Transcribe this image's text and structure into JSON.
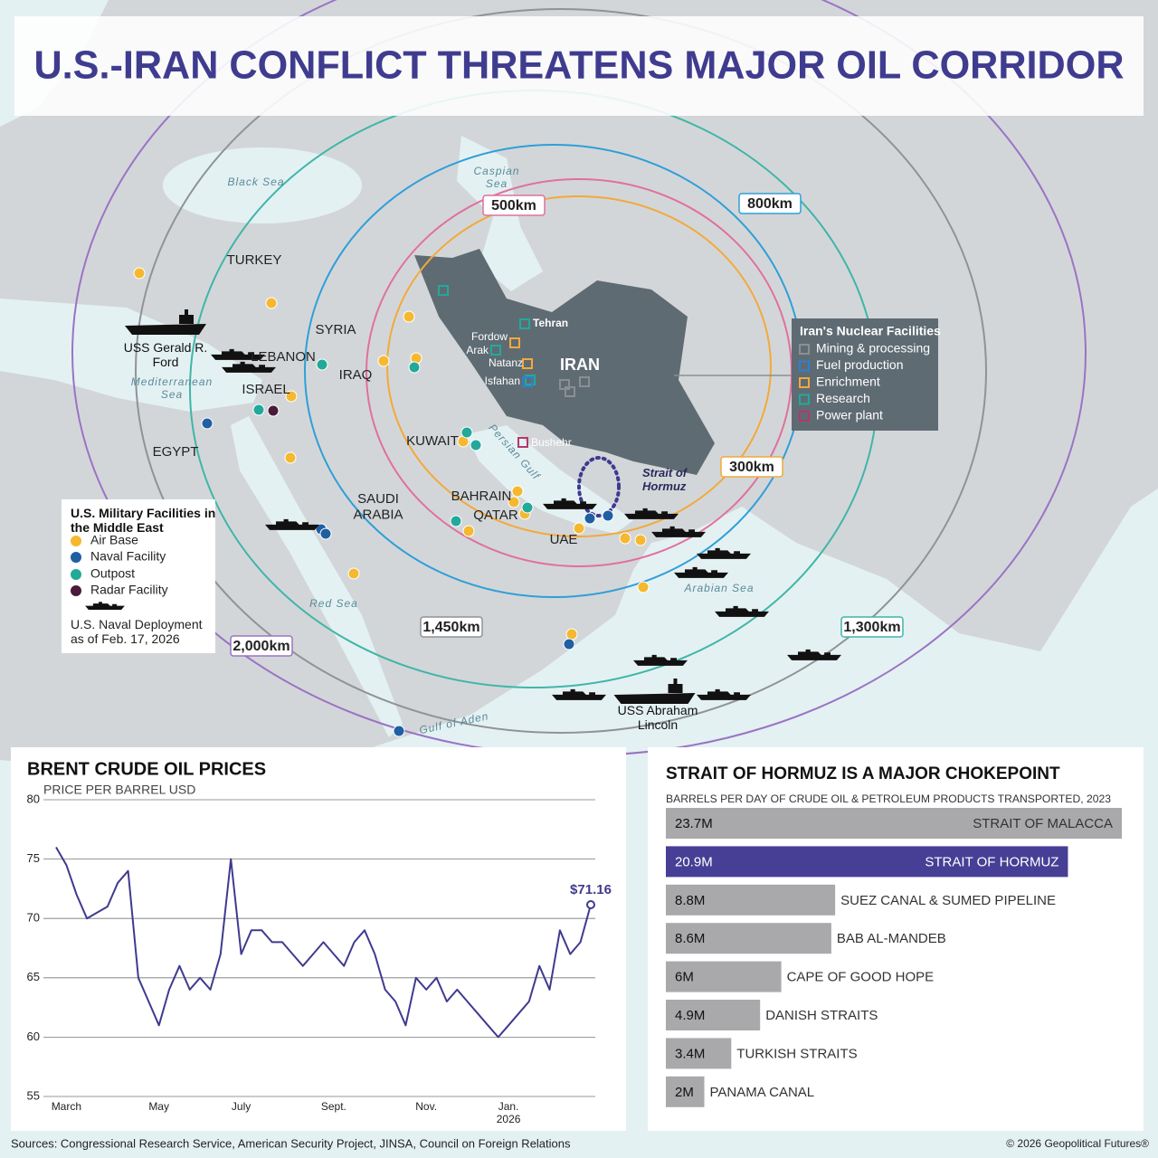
{
  "map": {
    "title": "U.S.-IRAN CONFLICT THREATENS MAJOR OIL CORRIDOR",
    "places": [
      "TURKEY",
      "SYRIA",
      "LEBANON",
      "IRAQ",
      "ISRAEL",
      "EGYPT",
      "SAUDI ARABIA",
      "KUWAIT",
      "BAHRAIN",
      "QATAR",
      "UAE",
      "IRAN"
    ],
    "seas": [
      "Black Sea",
      "Caspian Sea",
      "Mediterranean Sea",
      "Persian Gulf",
      "Red Sea",
      "Arabian Sea",
      "Gulf of Aden"
    ],
    "strait": "Strait of Hormuz",
    "nuclear_sites": [
      "Tehran",
      "Fordow",
      "Arak",
      "Natanz",
      "Isfahan",
      "Bushehr"
    ],
    "rings": [
      "300km",
      "500km",
      "800km",
      "1,300km",
      "1,450km",
      "2,000km"
    ],
    "ships": [
      "USS Gerald R. Ford",
      "USS Abraham Lincoln"
    ],
    "military_legend": {
      "title": "U.S. Military Facilities in the Middle East",
      "items": [
        "Air Base",
        "Naval Facility",
        "Outpost",
        "Radar Facility"
      ],
      "naval_note": "U.S. Naval Deployment as of Feb. 17, 2026"
    },
    "nuclear_legend": {
      "title": "Iran's Nuclear Facilities",
      "items": [
        "Mining & processing",
        "Fuel production",
        "Enrichment",
        "Research",
        "Power plant"
      ]
    }
  },
  "chart_data": [
    {
      "type": "line",
      "title": "BRENT CRUDE OIL PRICES",
      "y_label": "PRICE PER BARREL USD",
      "categories": [
        null,
        "March",
        null,
        null,
        null,
        null,
        null,
        null,
        null,
        null,
        "May",
        null,
        null,
        null,
        null,
        null,
        null,
        null,
        "July",
        null,
        null,
        null,
        null,
        null,
        null,
        null,
        null,
        "Sept.",
        null,
        null,
        null,
        null,
        null,
        null,
        null,
        null,
        "Nov.",
        null,
        null,
        null,
        null,
        null,
        null,
        null,
        "Jan. 2026",
        null,
        null,
        null,
        null,
        null,
        null,
        null,
        null
      ],
      "values": [
        76,
        74.5,
        72,
        70,
        70.5,
        71,
        73,
        74,
        65,
        63,
        61,
        64,
        66,
        64,
        65,
        64,
        67,
        75,
        67,
        69,
        69,
        68,
        68,
        67,
        66,
        67,
        68,
        67,
        66,
        68,
        69,
        67,
        64,
        63,
        61,
        65,
        64,
        65,
        63,
        64,
        63,
        62,
        61,
        60,
        61,
        62,
        63,
        66,
        64,
        69,
        67,
        68,
        71.16
      ],
      "value_labels": [
        null,
        null,
        null,
        null,
        null,
        null,
        null,
        null,
        null,
        null,
        null,
        null,
        null,
        null,
        null,
        null,
        null,
        null,
        null,
        null,
        null,
        null,
        null,
        null,
        null,
        null,
        null,
        null,
        null,
        null,
        null,
        null,
        null,
        null,
        null,
        null,
        null,
        null,
        null,
        null,
        null,
        null,
        null,
        null,
        null,
        null,
        null,
        null,
        null,
        null,
        null,
        null,
        "$71.16"
      ],
      "color": "#3f3a8f",
      "ylim": [
        55,
        80
      ],
      "yticks": [
        55,
        60,
        65,
        70,
        75,
        80
      ],
      "grid": true
    },
    {
      "type": "bar",
      "orientation": "horizontal",
      "title": "STRAIT OF HORMUZ IS A MAJOR CHOKEPOINT",
      "subtitle": "BARRELS PER DAY OF CRUDE OIL & PETROLEUM PRODUCTS TRANSPORTED, 2023",
      "categories": [
        "STRAIT OF MALACCA",
        "STRAIT OF HORMUZ",
        "SUEZ CANAL & SUMED PIPELINE",
        "BAB AL-MANDEB",
        "CAPE OF GOOD HOPE",
        "DANISH STRAITS",
        "TURKISH STRAITS",
        "PANAMA CANAL"
      ],
      "values": [
        23.7,
        20.9,
        8.8,
        8.6,
        6,
        4.9,
        3.4,
        2
      ],
      "value_labels": [
        "23.7M",
        "20.9M",
        "8.8M",
        "8.6M",
        "6M",
        "4.9M",
        "3.4M",
        "2M"
      ],
      "colors": [
        "#a9a9ab",
        "#463f95",
        "#a9a9ab",
        "#a9a9ab",
        "#a9a9ab",
        "#a9a9ab",
        "#a9a9ab",
        "#a9a9ab"
      ]
    }
  ],
  "footer": {
    "sources": "Sources: Congressional Research Service, American Security Project, JINSA, Council on Foreign Relations",
    "copyright": "© 2026 Geopolitical Futures®"
  }
}
